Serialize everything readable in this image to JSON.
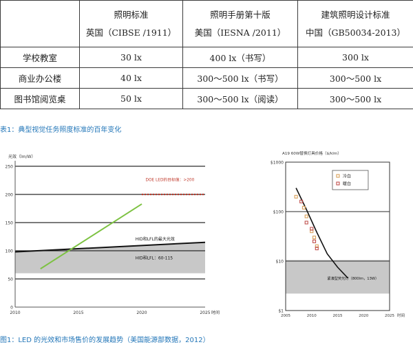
{
  "table": {
    "headers": [
      {
        "line1": "",
        "line2": ""
      },
      {
        "line1": "照明标准",
        "line2": "英国（CIBSE /1911）"
      },
      {
        "line1": "照明手册第十版",
        "line2": "美国（IESNA /2011）"
      },
      {
        "line1": "建筑照明设计标准",
        "line2": "中国（GB50034-2013）"
      }
    ],
    "rows": [
      {
        "label": "学校教室",
        "cells": [
          "30 lx",
          "400 lx（书写）",
          "300 lx"
        ]
      },
      {
        "label": "商业办公楼",
        "cells": [
          "40 lx",
          "300～500 lx（书写）",
          "300～500 lx"
        ]
      },
      {
        "label": "图书馆阅览桌",
        "cells": [
          "50 lx",
          "300～500 lx（阅读）",
          "300～500 lx"
        ]
      }
    ]
  },
  "caption1": "表1：典型视觉任务照度标准的百年变化",
  "caption2": "图1：LED 的光效和市场售价的发展趋势（美国能源部数据，2012）",
  "colors": {
    "led_line": "#7dc242",
    "target_line": "#c0392b",
    "hid_band": "#c8c8c8",
    "caption": "#2276b8",
    "cold_white_marker": "#d8a05a",
    "warm_white_marker": "#c0504d"
  },
  "chart_data": [
    {
      "type": "line",
      "ylabel": "光效（lm/W）",
      "xlabel": "时间",
      "xlim": [
        2010,
        2025
      ],
      "ylim": [
        0,
        250
      ],
      "x_ticks": [
        "2010",
        "2015",
        "2020",
        "2025"
      ],
      "y_ticks": [
        "0",
        "50",
        "100",
        "150",
        "200",
        "250"
      ],
      "grid": true,
      "series": [
        {
          "name": "",
          "x": [
            2012,
            2020
          ],
          "y": [
            68,
            183
          ]
        },
        {
          "name": "HID和LFL的最大光效",
          "x": [
            2010,
            2025
          ],
          "y": [
            98,
            115
          ]
        }
      ],
      "band": {
        "name": "HID和LFL：60-115",
        "low": 60,
        "upper_start": 98,
        "upper_end": 115
      },
      "target": {
        "name": "DOE LED的目标值：>200",
        "y": 200,
        "x": [
          2020,
          2025
        ]
      }
    },
    {
      "type": "scatter",
      "ylabel": "A19 60W替换灯具价格（$/klm）",
      "xlabel": "时间",
      "scale": "log",
      "xlim": [
        2005,
        2025
      ],
      "ylim": [
        1,
        1000
      ],
      "x_ticks": [
        "2005",
        "2010",
        "2015",
        "2020",
        "2025"
      ],
      "y_ticks": [
        "$1",
        "$10",
        "$100",
        "$1000"
      ],
      "legend": [
        "冷白",
        "暖白"
      ],
      "legend_position": "top-right",
      "series": [
        {
          "name": "冷白",
          "points": [
            [
              2007,
              200
            ],
            [
              2008.5,
              120
            ],
            [
              2009,
              80
            ],
            [
              2010,
              40
            ],
            [
              2010.5,
              30
            ],
            [
              2011,
              20
            ]
          ]
        },
        {
          "name": "暖白",
          "points": [
            [
              2008,
              160
            ],
            [
              2009,
              60
            ],
            [
              2010,
              45
            ],
            [
              2010.5,
              25
            ],
            [
              2011,
              18
            ]
          ]
        }
      ],
      "trend": {
        "x": [
          2007,
          2009,
          2011,
          2013,
          2015,
          2017
        ],
        "y": [
          300,
          110,
          38,
          14,
          7.5,
          4.5
        ]
      },
      "band": {
        "name": "紧凑型荧光灯（800lm，13W）",
        "low": 2.2,
        "high": 10.5,
        "x_start": 2013.5
      },
      "band_label_x": 2013
    }
  ]
}
